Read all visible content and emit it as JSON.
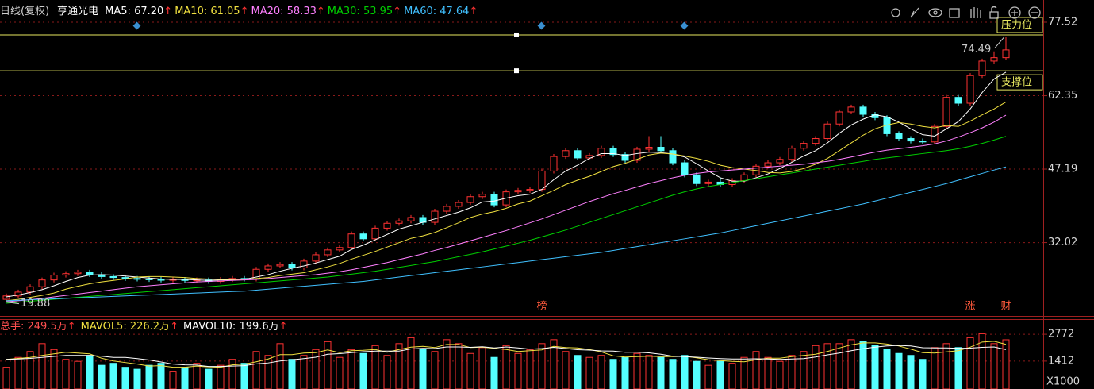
{
  "chart_data": [
    {
      "type": "candlestick",
      "title": "日线(复权)",
      "subtitle": "亨通光电",
      "up_color": "#ff3232",
      "down_color": "#54ffff",
      "open": [
        20.3,
        21.0,
        21.8,
        22.9,
        24.3,
        25.3,
        25.6,
        25.9,
        25.4,
        25.0,
        24.8,
        24.6,
        24.5,
        24.4,
        24.3,
        24.4,
        24.2,
        24.3,
        24.0,
        24.4,
        24.6,
        24.5,
        26.5,
        27.2,
        27.5,
        26.8,
        28.2,
        29.5,
        30.5,
        31.0,
        33.8,
        32.8,
        35.0,
        36.0,
        36.5,
        37.2,
        36.2,
        38.5,
        39.5,
        40.3,
        41.5,
        42.0,
        39.8,
        42.5,
        42.8,
        43.0,
        46.8,
        49.8,
        51.0,
        49.5,
        50.0,
        51.5,
        50.2,
        49.0,
        51.3,
        51.7,
        51.0,
        48.5,
        46.0,
        44.2,
        44.5,
        44.0,
        44.8,
        46.0,
        47.8,
        48.5,
        49.2,
        51.5,
        52.5,
        53.5,
        56.5,
        59.0,
        60.0,
        58.5,
        57.8,
        54.5,
        53.5,
        53.0,
        52.8,
        56.0,
        62.0,
        60.8,
        66.5,
        69.5,
        70.2
      ],
      "high": [
        21.5,
        22.3,
        23.4,
        24.8,
        25.8,
        26.1,
        26.4,
        26.4,
        25.9,
        25.5,
        25.3,
        25.1,
        25.0,
        24.9,
        24.9,
        24.9,
        24.8,
        24.8,
        24.9,
        25.1,
        25.1,
        27.0,
        27.7,
        28.0,
        28.0,
        28.7,
        30.0,
        31.0,
        31.5,
        34.3,
        34.3,
        35.5,
        36.5,
        37.0,
        37.7,
        37.7,
        39.0,
        40.0,
        40.8,
        42.0,
        42.5,
        42.5,
        43.0,
        43.3,
        43.5,
        47.3,
        50.3,
        51.5,
        51.5,
        50.5,
        52.0,
        52.0,
        50.7,
        51.8,
        54.0,
        54.0,
        51.5,
        49.0,
        46.5,
        45.0,
        45.5,
        45.3,
        46.5,
        48.3,
        49.0,
        49.7,
        52.0,
        53.0,
        54.0,
        57.0,
        59.5,
        60.5,
        60.5,
        59.0,
        58.3,
        55.0,
        54.0,
        53.5,
        56.5,
        62.5,
        62.5,
        67.0,
        70.0,
        71.5,
        74.49
      ],
      "low": [
        19.88,
        20.5,
        21.3,
        22.4,
        23.8,
        24.8,
        25.1,
        24.9,
        24.5,
        24.3,
        24.1,
        24.0,
        23.9,
        23.8,
        23.8,
        23.7,
        23.7,
        23.5,
        23.5,
        23.9,
        24.0,
        24.0,
        26.0,
        26.7,
        26.3,
        26.3,
        27.7,
        29.0,
        30.0,
        30.5,
        32.3,
        32.3,
        34.5,
        35.5,
        36.0,
        35.7,
        35.7,
        38.0,
        39.0,
        39.8,
        41.0,
        39.3,
        39.3,
        42.0,
        42.3,
        42.5,
        46.3,
        49.3,
        49.0,
        49.0,
        49.5,
        49.7,
        48.5,
        48.5,
        50.8,
        50.5,
        48.0,
        45.5,
        43.7,
        43.7,
        43.5,
        43.5,
        44.3,
        45.5,
        47.3,
        48.0,
        48.7,
        51.0,
        52.0,
        53.0,
        56.0,
        58.5,
        58.0,
        57.3,
        54.0,
        53.0,
        52.5,
        52.3,
        52.3,
        55.5,
        60.3,
        60.3,
        66.0,
        69.0,
        69.7
      ],
      "close": [
        21.0,
        21.8,
        22.9,
        24.3,
        25.3,
        25.6,
        25.9,
        25.4,
        25.0,
        24.8,
        24.6,
        24.5,
        24.4,
        24.3,
        24.4,
        24.2,
        24.3,
        24.0,
        24.4,
        24.6,
        24.5,
        26.5,
        27.2,
        27.5,
        26.8,
        28.2,
        29.5,
        30.5,
        31.0,
        33.8,
        32.8,
        35.0,
        36.0,
        36.5,
        37.2,
        36.2,
        38.5,
        39.5,
        40.3,
        41.5,
        42.0,
        39.8,
        42.5,
        42.8,
        43.0,
        46.8,
        49.8,
        51.0,
        49.5,
        50.0,
        51.5,
        50.2,
        49.0,
        51.3,
        51.7,
        51.0,
        48.5,
        46.0,
        44.2,
        44.5,
        44.0,
        44.8,
        46.0,
        47.8,
        48.5,
        49.2,
        51.5,
        52.5,
        53.5,
        56.5,
        59.0,
        60.0,
        58.5,
        57.8,
        54.5,
        53.5,
        53.0,
        52.8,
        56.0,
        62.0,
        60.8,
        66.5,
        69.5,
        70.2,
        71.8
      ],
      "series": [
        {
          "name": "MA5: 67.20",
          "arrow": "↑",
          "color": "#ffffff",
          "values": [
            20.8,
            21.2,
            21.7,
            22.3,
            23.1,
            24.0,
            24.8,
            25.3,
            25.4,
            25.3,
            25.1,
            24.9,
            24.7,
            24.5,
            24.4,
            24.4,
            24.3,
            24.2,
            24.3,
            24.3,
            24.4,
            24.9,
            25.4,
            26.1,
            26.7,
            27.2,
            27.8,
            28.5,
            29.2,
            30.6,
            31.5,
            32.6,
            33.7,
            34.8,
            35.5,
            36.2,
            36.9,
            37.6,
            38.3,
            39.2,
            40.4,
            40.6,
            41.2,
            41.7,
            42.0,
            43.0,
            45.0,
            46.8,
            48.0,
            49.4,
            50.4,
            50.4,
            50.0,
            50.4,
            50.7,
            50.6,
            50.3,
            49.7,
            48.3,
            46.8,
            45.4,
            44.7,
            44.7,
            45.4,
            46.2,
            47.3,
            48.6,
            49.9,
            51.0,
            52.6,
            54.6,
            56.3,
            57.5,
            58.4,
            58.0,
            56.9,
            55.5,
            54.3,
            54.0,
            55.5,
            57.0,
            59.6,
            63.0,
            65.8,
            67.2
          ]
        },
        {
          "name": "MA10: 61.05",
          "arrow": "↑",
          "color": "#f0e040",
          "values": [
            20.0,
            20.3,
            20.7,
            21.1,
            21.6,
            22.4,
            23.0,
            23.5,
            23.9,
            24.2,
            24.5,
            24.9,
            25.0,
            25.0,
            24.9,
            24.8,
            24.6,
            24.5,
            24.4,
            24.4,
            24.4,
            24.6,
            24.8,
            25.2,
            25.5,
            25.8,
            26.4,
            27.0,
            27.7,
            28.6,
            29.4,
            30.2,
            31.1,
            32.0,
            32.9,
            33.4,
            34.1,
            35.1,
            36.1,
            37.2,
            37.9,
            38.4,
            39.1,
            40.0,
            40.6,
            41.7,
            42.8,
            44.0,
            44.9,
            45.7,
            46.7,
            47.7,
            48.4,
            49.2,
            50.1,
            50.5,
            50.3,
            49.9,
            49.4,
            48.8,
            48.0,
            47.5,
            47.2,
            46.9,
            46.5,
            46.4,
            46.7,
            47.3,
            48.2,
            49.4,
            51.0,
            52.6,
            54.2,
            55.5,
            56.3,
            56.8,
            56.5,
            56.0,
            55.7,
            56.2,
            56.0,
            57.1,
            58.4,
            59.6,
            61.05
          ]
        },
        {
          "name": "MA20: 58.33",
          "arrow": "↑",
          "color": "#ff80ff",
          "values": [
            19.8,
            20.0,
            20.2,
            20.5,
            20.8,
            21.1,
            21.4,
            21.7,
            22.0,
            22.3,
            22.6,
            22.9,
            23.1,
            23.3,
            23.5,
            23.7,
            23.9,
            24.0,
            24.1,
            24.2,
            24.3,
            24.4,
            24.6,
            24.8,
            25.0,
            25.2,
            25.4,
            25.7,
            26.0,
            26.4,
            26.9,
            27.4,
            27.9,
            28.5,
            29.1,
            29.7,
            30.4,
            31.0,
            31.7,
            32.4,
            33.1,
            33.8,
            34.5,
            35.3,
            36.1,
            36.9,
            37.8,
            38.7,
            39.6,
            40.5,
            41.3,
            42.1,
            42.8,
            43.5,
            44.2,
            44.8,
            45.4,
            45.9,
            46.3,
            46.6,
            46.8,
            47.0,
            47.2,
            47.4,
            47.6,
            47.8,
            48.0,
            48.2,
            48.5,
            48.8,
            49.2,
            49.7,
            50.2,
            50.7,
            51.1,
            51.4,
            51.7,
            52.0,
            52.4,
            53.0,
            53.8,
            54.7,
            55.7,
            56.9,
            58.33
          ]
        },
        {
          "name": "MA30: 53.95",
          "arrow": "↑",
          "color": "#00d000",
          "values": [
            19.5,
            19.7,
            19.9,
            20.1,
            20.3,
            20.5,
            20.7,
            20.9,
            21.1,
            21.3,
            21.5,
            21.7,
            21.9,
            22.1,
            22.3,
            22.5,
            22.7,
            22.9,
            23.1,
            23.3,
            23.5,
            23.7,
            23.9,
            24.1,
            24.3,
            24.5,
            24.7,
            24.9,
            25.2,
            25.5,
            25.8,
            26.1,
            26.5,
            26.9,
            27.3,
            27.7,
            28.1,
            28.6,
            29.1,
            29.6,
            30.1,
            30.7,
            31.3,
            31.9,
            32.5,
            33.2,
            33.9,
            34.6,
            35.4,
            36.2,
            37.0,
            37.8,
            38.6,
            39.4,
            40.2,
            41.0,
            41.8,
            42.5,
            43.1,
            43.6,
            44.0,
            44.4,
            44.8,
            45.2,
            45.6,
            46.0,
            46.4,
            46.8,
            47.2,
            47.6,
            48.0,
            48.4,
            48.8,
            49.2,
            49.5,
            49.8,
            50.1,
            50.4,
            50.7,
            51.0,
            51.4,
            51.9,
            52.5,
            53.2,
            53.95
          ]
        },
        {
          "name": "MA60: 47.64",
          "arrow": "↑",
          "color": "#40c0ff",
          "values": [
            20.0,
            20.1,
            20.2,
            20.3,
            20.4,
            20.5,
            20.6,
            20.7,
            20.8,
            20.9,
            21.0,
            21.1,
            21.2,
            21.3,
            21.4,
            21.5,
            21.6,
            21.7,
            21.8,
            21.9,
            22.0,
            22.2,
            22.4,
            22.6,
            22.8,
            23.0,
            23.2,
            23.4,
            23.6,
            23.8,
            24.0,
            24.3,
            24.6,
            24.9,
            25.2,
            25.5,
            25.8,
            26.1,
            26.4,
            26.7,
            27.0,
            27.3,
            27.6,
            27.9,
            28.2,
            28.5,
            28.8,
            29.1,
            29.4,
            29.7,
            30.0,
            30.4,
            30.8,
            31.2,
            31.6,
            32.0,
            32.4,
            32.8,
            33.2,
            33.6,
            34.0,
            34.5,
            35.0,
            35.5,
            36.0,
            36.5,
            37.0,
            37.5,
            38.0,
            38.5,
            39.0,
            39.5,
            40.0,
            40.6,
            41.2,
            41.8,
            42.4,
            43.0,
            43.6,
            44.2,
            44.9,
            45.6,
            46.3,
            47.0,
            47.64
          ]
        }
      ],
      "ylim": [
        17.36,
        82.11
      ],
      "yticks": [
        77.52,
        62.35,
        47.19,
        32.02
      ],
      "grid": true,
      "annotations": [
        74.49,
        19.88
      ],
      "levels": [
        {
          "label": "压力位",
          "value": 74.9
        },
        {
          "label": "支撑位",
          "value": 67.5
        }
      ],
      "markers": [
        "榜",
        "涨",
        "财"
      ]
    },
    {
      "type": "volume",
      "title": "总手: 249.5万",
      "arrow": "↑",
      "values": [
        1100,
        1600,
        1900,
        2300,
        2000,
        1500,
        1400,
        1700,
        1200,
        1300,
        1100,
        1000,
        1200,
        1300,
        900,
        1100,
        1300,
        1000,
        1200,
        1500,
        1300,
        1900,
        1700,
        2300,
        1500,
        1700,
        2000,
        2400,
        1600,
        2000,
        1800,
        2200,
        1700,
        2300,
        2600,
        2000,
        1900,
        2500,
        2300,
        1800,
        2100,
        1600,
        2200,
        1800,
        2000,
        2300,
        2500,
        1900,
        1700,
        1600,
        1700,
        1500,
        1600,
        1800,
        1700,
        1600,
        1500,
        1700,
        1400,
        1200,
        1400,
        1300,
        1600,
        1900,
        1600,
        1400,
        1700,
        1900,
        2200,
        2300,
        2300,
        2500,
        2400,
        2200,
        2000,
        1800,
        1700,
        1500,
        2100,
        2300,
        2100,
        2600,
        2800,
        2300,
        2495
      ],
      "series": [
        {
          "name": "MAVOL5: 226.2万",
          "arrow": "↑",
          "color": "#f0e040",
          "values": [
            1500,
            1550,
            1600,
            1700,
            1780,
            1860,
            1820,
            1780,
            1560,
            1420,
            1340,
            1260,
            1160,
            1180,
            1100,
            1100,
            1160,
            1120,
            1100,
            1220,
            1260,
            1380,
            1520,
            1740,
            1740,
            1820,
            1840,
            1980,
            1840,
            1940,
            1960,
            2000,
            1860,
            2000,
            2120,
            2160,
            2100,
            2260,
            2260,
            2100,
            2120,
            2060,
            2000,
            1900,
            1940,
            1980,
            2160,
            2100,
            2080,
            2000,
            1880,
            1680,
            1620,
            1640,
            1660,
            1640,
            1640,
            1660,
            1580,
            1480,
            1440,
            1400,
            1380,
            1480,
            1560,
            1560,
            1640,
            1700,
            1760,
            1900,
            2080,
            2240,
            2340,
            2340,
            2280,
            2180,
            2020,
            1840,
            1820,
            1880,
            1940,
            2120,
            2380,
            2420,
            2262
          ]
        },
        {
          "name": "MAVOL10: 199.6万",
          "arrow": "↑",
          "color": "#ffffff",
          "values": [
            1500,
            1520,
            1550,
            1600,
            1650,
            1700,
            1700,
            1700,
            1660,
            1600,
            1600,
            1540,
            1470,
            1370,
            1260,
            1220,
            1210,
            1140,
            1140,
            1160,
            1180,
            1270,
            1320,
            1420,
            1480,
            1540,
            1610,
            1760,
            1790,
            1840,
            1890,
            1920,
            1920,
            1920,
            2030,
            2060,
            2050,
            2130,
            2130,
            2110,
            2140,
            2080,
            2130,
            2080,
            2020,
            2050,
            2110,
            2050,
            1990,
            1970,
            1930,
            1920,
            1860,
            1860,
            1830,
            1760,
            1660,
            1640,
            1610,
            1570,
            1540,
            1520,
            1520,
            1530,
            1520,
            1500,
            1520,
            1540,
            1620,
            1730,
            1820,
            1940,
            2040,
            2120,
            2180,
            2210,
            2180,
            2090,
            2080,
            2080,
            2060,
            2070,
            2110,
            2130,
            1996
          ]
        }
      ],
      "ylim": [
        0,
        3500
      ],
      "yticks": [
        2772,
        1412
      ],
      "unit": "X1000"
    }
  ]
}
